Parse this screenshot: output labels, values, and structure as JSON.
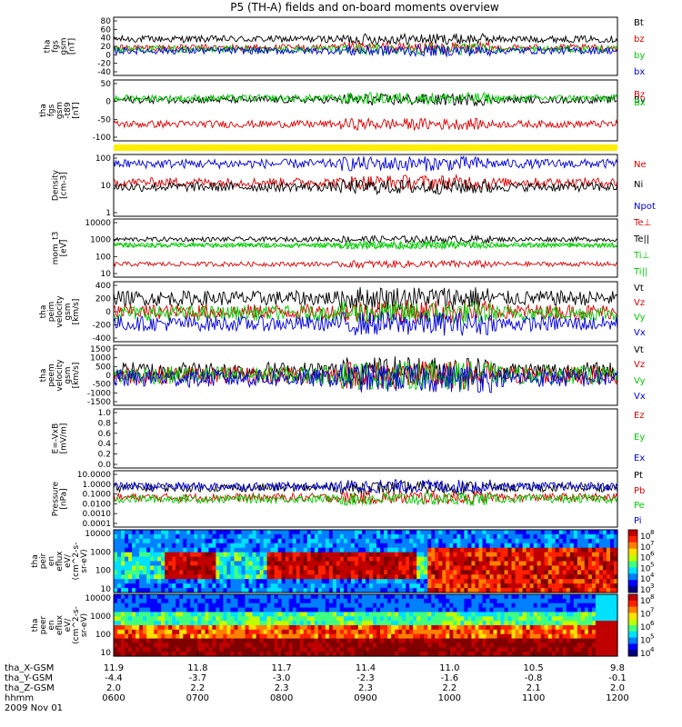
{
  "title": "P5 (TH-A) fields and on-board moments overview",
  "colors": {
    "black": "#000000",
    "red": "#dd0000",
    "green": "#00cc00",
    "blue": "#0000dd",
    "yellow": "#ffee00"
  },
  "chart_data": {
    "type": "line",
    "time": {
      "date": "2009 Nov 01",
      "ticks": [
        "0600",
        "0700",
        "0800",
        "0900",
        "1000",
        "1100",
        "1200"
      ],
      "rows": [
        {
          "label": "tha_X-GSM",
          "values": [
            "11.9",
            "11.8",
            "11.7",
            "11.4",
            "11.0",
            "10.5",
            "9.8"
          ]
        },
        {
          "label": "tha_Y-GSM",
          "values": [
            "-4.4",
            "-3.7",
            "-3.0",
            "-2.3",
            "-1.6",
            "-0.8",
            "-0.1"
          ]
        },
        {
          "label": "tha_Z-GSM",
          "values": [
            "2.0",
            "2.2",
            "2.3",
            "2.3",
            "2.2",
            "2.1",
            "2.0"
          ]
        },
        {
          "label": "hhmm",
          "values": [
            "0600",
            "0700",
            "0800",
            "0900",
            "1000",
            "1100",
            "1200"
          ]
        }
      ]
    },
    "panels": [
      {
        "id": "fgs",
        "ylabel": [
          "tha",
          "fgs",
          "gsm",
          "[nT]"
        ],
        "ticks": [
          "80",
          "60",
          "40",
          "20",
          "0",
          "-20",
          "-40"
        ],
        "ylim": [
          -40,
          80
        ],
        "series": [
          {
            "name": "Bt",
            "color": "black"
          },
          {
            "name": "bz",
            "color": "red"
          },
          {
            "name": "by",
            "color": "green"
          },
          {
            "name": "bx",
            "color": "blue"
          }
        ]
      },
      {
        "id": "fgs_t89",
        "ylabel": [
          "tha",
          "fgs",
          "gsm",
          "-t89",
          "[nT]"
        ],
        "ticks": [
          "50",
          "0",
          "-50",
          "-100"
        ],
        "ylim": [
          -120,
          60
        ],
        "series": [
          {
            "name": "Bz",
            "color": "red"
          },
          {
            "name": "By",
            "color": "black"
          },
          {
            "name": "Bx",
            "color": "green"
          }
        ]
      },
      {
        "id": "density",
        "ylabel": [
          "Density",
          "[cm-3]"
        ],
        "ticks": [
          "100",
          "10",
          "1"
        ],
        "log": true,
        "ylim": [
          1,
          200
        ],
        "series": [
          {
            "name": "Ne",
            "color": "red"
          },
          {
            "name": "Ni",
            "color": "black"
          },
          {
            "name": "Npot",
            "color": "blue"
          }
        ]
      },
      {
        "id": "temp",
        "ylabel": [
          "mom_t3",
          "[eV]"
        ],
        "ticks": [
          "10000",
          "1000",
          "100",
          "10"
        ],
        "log": true,
        "ylim": [
          4,
          20000
        ],
        "series": [
          {
            "name": "Te⊥",
            "color": "red"
          },
          {
            "name": "Te||",
            "color": "black"
          },
          {
            "name": "Ti⊥",
            "color": "green"
          },
          {
            "name": "Ti||",
            "color": "green"
          }
        ]
      },
      {
        "id": "peim",
        "ylabel": [
          "tha",
          "peim",
          "velocity",
          "gsm",
          "[km/s]"
        ],
        "ticks": [
          "400",
          "200",
          "0",
          "-200",
          "-400"
        ],
        "ylim": [
          -400,
          400
        ],
        "series": [
          {
            "name": "Vt",
            "color": "black"
          },
          {
            "name": "Vz",
            "color": "red"
          },
          {
            "name": "Vy",
            "color": "green"
          },
          {
            "name": "Vx",
            "color": "blue"
          }
        ]
      },
      {
        "id": "peem",
        "ylabel": [
          "tha",
          "peem",
          "velocity",
          "gsm",
          "[km/s]"
        ],
        "ticks": [
          "1500",
          "1000",
          "500",
          "0",
          "-500",
          "-1000",
          "-1500"
        ],
        "ylim": [
          -1500,
          1500
        ],
        "series": [
          {
            "name": "Vt",
            "color": "black"
          },
          {
            "name": "Vz",
            "color": "red"
          },
          {
            "name": "Vy",
            "color": "green"
          },
          {
            "name": "Vx",
            "color": "blue"
          }
        ]
      },
      {
        "id": "efield",
        "ylabel": [
          "E=-VxB",
          "[mV/m]"
        ],
        "ticks": [
          "1.0",
          "0.8",
          "0.6",
          "0.4",
          "0.2",
          "0.0"
        ],
        "ylim": [
          0,
          1
        ],
        "series": [
          {
            "name": "Ez",
            "color": "red"
          },
          {
            "name": "Ey",
            "color": "green"
          },
          {
            "name": "Ex",
            "color": "blue"
          }
        ]
      },
      {
        "id": "pressure",
        "ylabel": [
          "Pressure",
          "[nPa]"
        ],
        "ticks": [
          "10.0000",
          "1.0000",
          "0.1000",
          "0.0100",
          "0.0010",
          "0.0001"
        ],
        "log": true,
        "ylim": [
          0.0001,
          10
        ],
        "series": [
          {
            "name": "Pt",
            "color": "black"
          },
          {
            "name": "Pb",
            "color": "red"
          },
          {
            "name": "Pe",
            "color": "green"
          },
          {
            "name": "Pi",
            "color": "blue"
          }
        ]
      },
      {
        "id": "peir",
        "type": "heatmap",
        "ylabel": [
          "tha",
          "peir",
          "en",
          "eflux",
          "eV/",
          "(cm^2-s-",
          "sr-eV)"
        ],
        "ticks": [
          "10000",
          "1000",
          "100",
          "10"
        ],
        "log": true,
        "colorbar_ticks": [
          "10",
          "10",
          "10",
          "10",
          "10",
          "10"
        ],
        "colorbar_exps": [
          "8",
          "7",
          "6",
          "5",
          "4",
          "3"
        ]
      },
      {
        "id": "peer",
        "type": "heatmap",
        "ylabel": [
          "tha",
          "peer",
          "en",
          "eflux",
          "eV/",
          "(cm^2-s-",
          "sr-eV)"
        ],
        "ticks": [
          "10000",
          "1000",
          "100",
          "10"
        ],
        "log": true,
        "colorbar_ticks": [
          "10",
          "10",
          "10",
          "10",
          "10"
        ],
        "colorbar_exps": [
          "8",
          "7",
          "6",
          "5",
          "4"
        ]
      }
    ]
  }
}
